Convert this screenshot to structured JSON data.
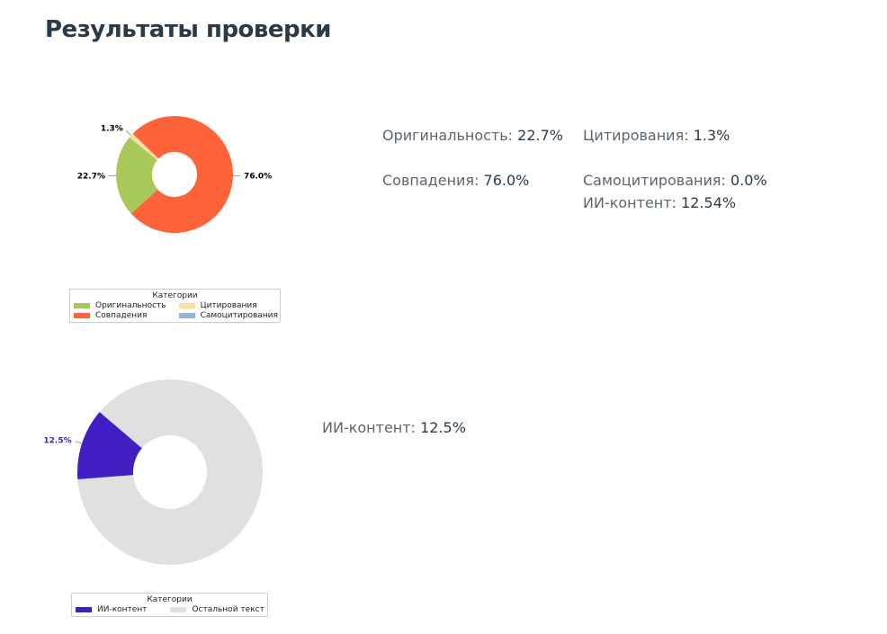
{
  "page_title": "Результаты проверки",
  "stats_main": [
    {
      "label": "Оригинальность:",
      "value": "22.7%"
    },
    {
      "label": "Цитирования:",
      "value": "1.3%"
    },
    {
      "label": "Совпадения:",
      "value": "76.0%"
    },
    {
      "label": "Самоцитирования:",
      "value": "0.0%"
    },
    {
      "label": "ИИ-контент:",
      "value": "12.54%"
    }
  ],
  "stats_ai": [
    {
      "label": "ИИ-контент:",
      "value": "12.5%"
    }
  ],
  "chart_data": [
    {
      "type": "pie",
      "donut": true,
      "categories": [
        "Оригинальность",
        "Цитирования",
        "Самоцитирования",
        "Совпадения"
      ],
      "values": [
        22.7,
        1.3,
        0.0,
        76.0
      ],
      "data_labels": [
        "22.7%",
        "1.3%",
        "",
        "76.0%"
      ],
      "colors": [
        "#a8c85a",
        "#ffe0a0",
        "#94b4d8",
        "#ff6339"
      ],
      "legend_title": "Категории",
      "legend_placement": "bottom"
    },
    {
      "type": "pie",
      "donut": true,
      "categories": [
        "ИИ-контент",
        "Остальной текст"
      ],
      "values": [
        12.5,
        87.5
      ],
      "data_labels": [
        "12.5%",
        ""
      ],
      "colors": [
        "#421fc2",
        "#e0e0e0"
      ],
      "legend_title": "Категории",
      "legend_placement": "bottom"
    }
  ]
}
